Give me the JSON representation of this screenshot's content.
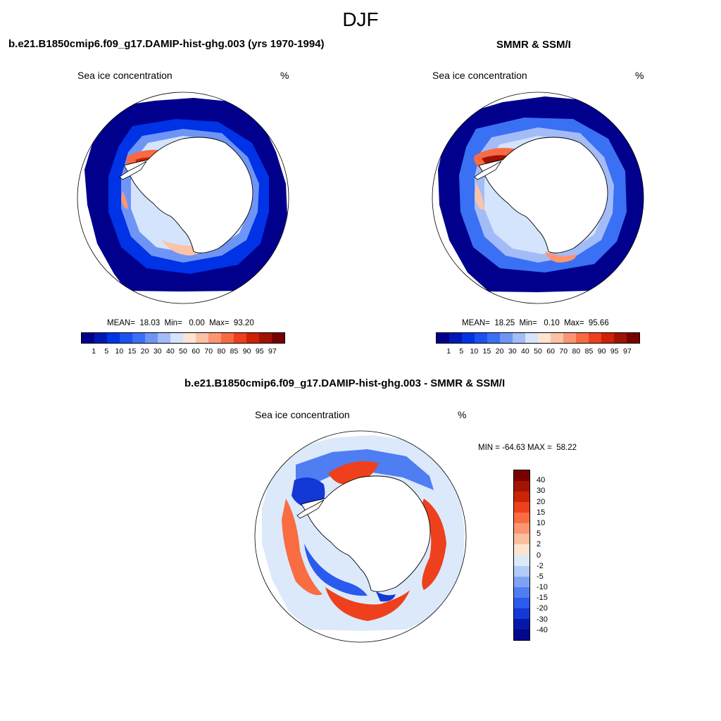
{
  "figure": {
    "season": "DJF",
    "panel_left": {
      "title": "b.e21.B1850cmip6.f09_g17.DAMIP-hist-ghg.003 (yrs 1970-1994)",
      "variable": "Sea ice concentration",
      "unit": "%",
      "stats": "MEAN=  18.03  Min=   0.00  Max=  93.20"
    },
    "panel_right": {
      "title": "SMMR & SSM/I",
      "variable": "Sea ice concentration",
      "unit": "%",
      "stats": "MEAN=  18.25  Min=   0.10  Max=  95.66"
    },
    "panel_diff": {
      "title": "b.e21.B1850cmip6.f09_g17.DAMIP-hist-ghg.003 - SMMR & SSM/I",
      "variable": "Sea ice concentration",
      "unit": "%",
      "stats": "MIN = -64.63 MAX =  58.22"
    }
  },
  "colorbar_abs": {
    "labels": [
      "1",
      "5",
      "10",
      "15",
      "20",
      "30",
      "40",
      "50",
      "60",
      "70",
      "80",
      "85",
      "90",
      "95",
      "97"
    ],
    "colors": [
      "#00008c",
      "#0019b4",
      "#0032e6",
      "#1a52f0",
      "#3a70f4",
      "#6e95f6",
      "#a3bcf8",
      "#d4e4fc",
      "#fde4d3",
      "#fcc2a5",
      "#fc9672",
      "#f86a44",
      "#ee3e1c",
      "#cc2205",
      "#a01202",
      "#780000"
    ]
  },
  "colorbar_diff": {
    "labels": [
      "40",
      "30",
      "20",
      "15",
      "10",
      "5",
      "2",
      "0",
      "-2",
      "-5",
      "-10",
      "-15",
      "-20",
      "-30",
      "-40"
    ],
    "colors": [
      "#7a0000",
      "#a41402",
      "#cc2406",
      "#ee401c",
      "#fa6c42",
      "#fc9670",
      "#fcbe9c",
      "#fde4d0",
      "#dbe9fb",
      "#b1cbf9",
      "#7ea3f5",
      "#4f7ef2",
      "#2a5aee",
      "#1338d6",
      "#0618aa",
      "#00088c"
    ]
  }
}
